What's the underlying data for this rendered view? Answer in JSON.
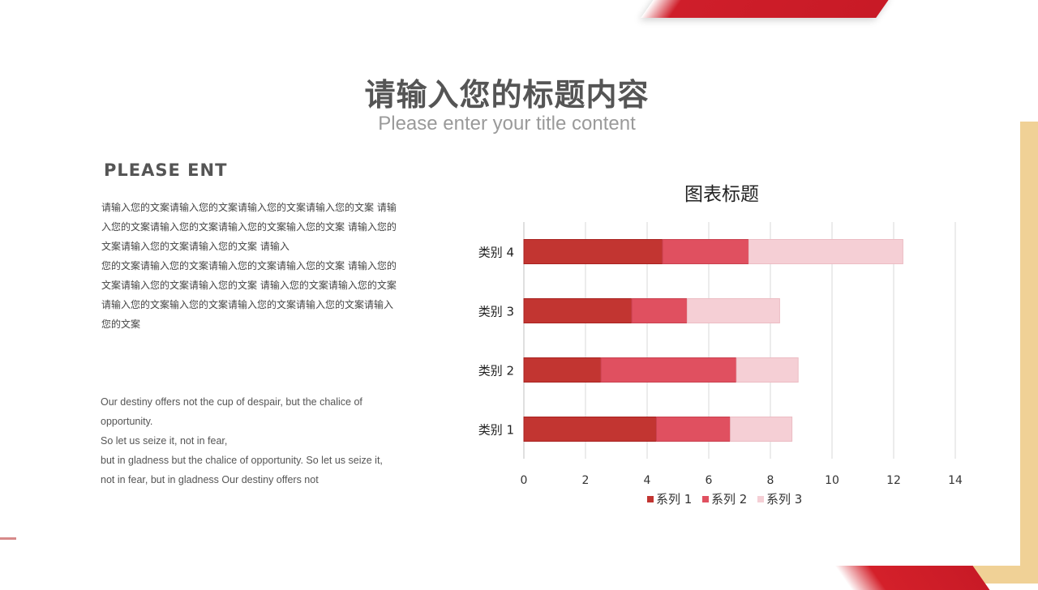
{
  "slide": {
    "title_cn": "请输入您的标题内容",
    "title_en": "Please enter your title content",
    "sub_heading": "PLEASE ENT",
    "body_cn_lines": [
      "请输入您的文案请输入您的文案请输入您的文案请输入您的文案 请输",
      "入您的文案请输入您的文案请输入您的文案输入您的文案 请输入您的",
      "文案请输入您的文案请输入您的文案 请输入",
      "您的文案请输入您的文案请输入您的文案请输入您的文案 请输入您的",
      "文案请输入您的文案请输入您的文案 请输入您的文案请输入您的文案",
      "请输入您的文案输入您的文案请输入您的文案请输入您的文案请输入",
      "您的文案"
    ],
    "body_en_lines": [
      "Our destiny offers not the cup of despair,  but the chalice of",
      "opportunity.",
      "So let us seize it, not in fear,",
      "but in gladness but the chalice of opportunity. So let us seize it,",
      " not in fear, but in gladness Our destiny  offers not"
    ],
    "colors": {
      "accent_red": "#c81a26",
      "accent_gold": "#f0d196"
    }
  },
  "chart_data": {
    "type": "bar",
    "orientation": "horizontal",
    "stacked": true,
    "title": "图表标题",
    "categories": [
      "类别 1",
      "类别 2",
      "类别 3",
      "类别 4"
    ],
    "series": [
      {
        "name": "系列 1",
        "values": [
          4.3,
          2.5,
          3.5,
          4.5
        ],
        "color": "#c23531"
      },
      {
        "name": "系列 2",
        "values": [
          2.4,
          4.4,
          1.8,
          2.8
        ],
        "color": "#e05060"
      },
      {
        "name": "系列 3",
        "values": [
          2.0,
          2.0,
          3.0,
          5.0
        ],
        "color": "#f5cfd5"
      }
    ],
    "xlim": [
      0,
      14
    ],
    "xticks": [
      0,
      2,
      4,
      6,
      8,
      10,
      12,
      14
    ],
    "grid": true,
    "legend_position": "bottom"
  }
}
